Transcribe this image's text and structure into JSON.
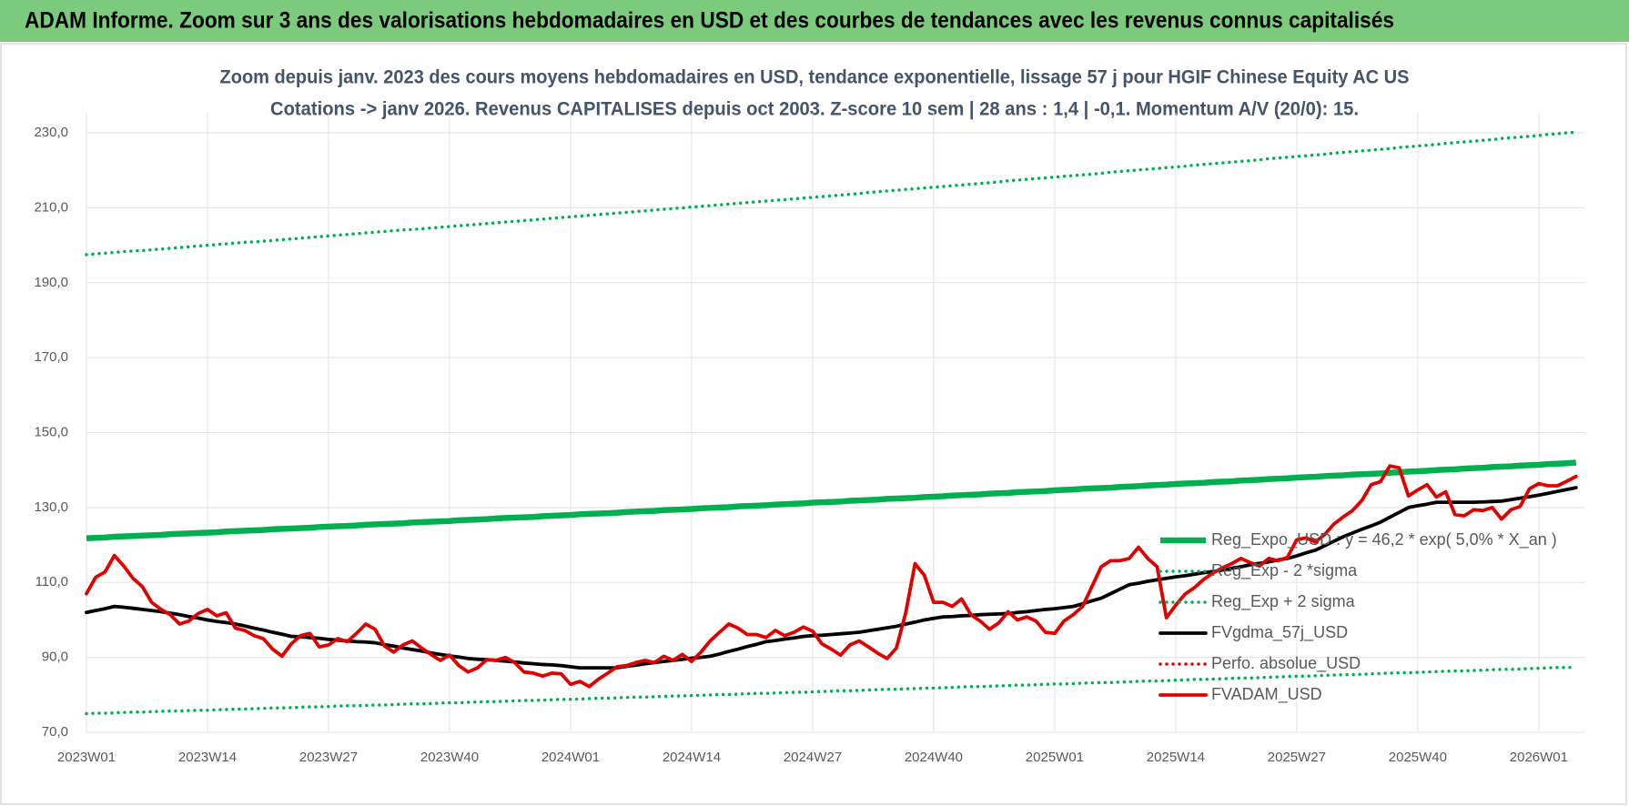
{
  "header": {
    "title": "ADAM Informe. Zoom sur 3 ans des valorisations hebdomadaires en USD et des courbes de tendances avec les revenus connus capitalisés"
  },
  "chart_data": {
    "type": "line",
    "title": "Zoom depuis janv. 2023 des cours moyens hebdomadaires en USD, tendance exponentielle, lissage 57 j pour HGIF Chinese Equity AC US",
    "subtitle": "Cotations -> janv 2026. Revenus CAPITALISES depuis oct 2003. Z-score 10 sem  | 28 ans : 1,4 | -0,1. Momentum A/V (20/0): 15.",
    "categories": [
      "2023W01",
      null,
      null,
      null,
      null,
      null,
      null,
      null,
      null,
      null,
      null,
      null,
      null,
      "2023W14",
      null,
      null,
      null,
      null,
      null,
      null,
      null,
      null,
      null,
      null,
      null,
      null,
      "2023W27",
      null,
      null,
      null,
      null,
      null,
      null,
      null,
      null,
      null,
      null,
      null,
      null,
      "2023W40",
      null,
      null,
      null,
      null,
      null,
      null,
      null,
      null,
      null,
      null,
      null,
      null,
      "2024W01",
      null,
      null,
      null,
      null,
      null,
      null,
      null,
      null,
      null,
      null,
      null,
      null,
      "2024W14",
      null,
      null,
      null,
      null,
      null,
      null,
      null,
      null,
      null,
      null,
      null,
      null,
      "2024W27",
      null,
      null,
      null,
      null,
      null,
      null,
      null,
      null,
      null,
      null,
      null,
      null,
      "2024W40",
      null,
      null,
      null,
      null,
      null,
      null,
      null,
      null,
      null,
      null,
      null,
      null,
      "2025W01",
      null,
      null,
      null,
      null,
      null,
      null,
      null,
      null,
      null,
      null,
      null,
      null,
      "2025W14",
      null,
      null,
      null,
      null,
      null,
      null,
      null,
      null,
      null,
      null,
      null,
      null,
      "2025W27",
      null,
      null,
      null,
      null,
      null,
      null,
      null,
      null,
      null,
      null,
      null,
      null,
      "2025W40",
      null,
      null,
      null,
      null,
      null,
      null,
      null,
      null,
      null,
      null,
      null,
      null,
      "2026W01",
      null,
      null,
      null,
      null
    ],
    "ylim": [
      70,
      239
    ],
    "yticks": [
      {
        "value": 70,
        "label": "70,0"
      },
      {
        "value": 90,
        "label": "90,0"
      },
      {
        "value": 110,
        "label": "110,0"
      },
      {
        "value": 130,
        "label": "130,0"
      },
      {
        "value": 150,
        "label": "150,0"
      },
      {
        "value": 170,
        "label": "170,0"
      },
      {
        "value": 190,
        "label": "190,0"
      },
      {
        "value": 210,
        "label": "210,0"
      },
      {
        "value": 230,
        "label": "230,0"
      }
    ],
    "grid": true,
    "legend": "right",
    "series": [
      {
        "name": "Reg_Expo_USD : y = 46,2 * exp( 5,0% *  X_an )",
        "color": "#00b050",
        "line": "thick",
        "values": [
          121.8,
          121.9,
          122.0,
          122.2,
          122.3,
          122.4,
          122.5,
          122.6,
          122.7,
          122.9,
          123.0,
          123.1,
          123.2,
          123.3,
          123.4,
          123.6,
          123.7,
          123.8,
          123.9,
          124.0,
          124.2,
          124.3,
          124.4,
          124.5,
          124.6,
          124.8,
          124.9,
          125.0,
          125.1,
          125.2,
          125.4,
          125.5,
          125.6,
          125.7,
          125.8,
          126.0,
          126.1,
          126.2,
          126.3,
          126.4,
          126.6,
          126.7,
          126.8,
          126.9,
          127.1,
          127.2,
          127.3,
          127.4,
          127.5,
          127.7,
          127.8,
          127.9,
          128.0,
          128.2,
          128.3,
          128.4,
          128.5,
          128.6,
          128.8,
          128.9,
          129.0,
          129.1,
          129.3,
          129.4,
          129.5,
          129.6,
          129.8,
          129.9,
          130.0,
          130.1,
          130.3,
          130.4,
          130.5,
          130.6,
          130.8,
          130.9,
          131.0,
          131.1,
          131.3,
          131.4,
          131.5,
          131.6,
          131.8,
          131.9,
          132.0,
          132.1,
          132.3,
          132.4,
          132.5,
          132.6,
          132.8,
          132.9,
          133.0,
          133.2,
          133.3,
          133.4,
          133.5,
          133.7,
          133.8,
          133.9,
          134.1,
          134.2,
          134.3,
          134.4,
          134.6,
          134.7,
          134.8,
          135.0,
          135.1,
          135.2,
          135.3,
          135.5,
          135.6,
          135.7,
          135.9,
          136.0,
          136.1,
          136.3,
          136.4,
          136.5,
          136.6,
          136.8,
          136.9,
          137.0,
          137.2,
          137.3,
          137.4,
          137.6,
          137.7,
          137.8,
          138.0,
          138.1,
          138.2,
          138.4,
          138.5,
          138.6,
          138.8,
          138.9,
          139.0,
          139.1,
          139.3,
          139.4,
          139.6,
          139.7,
          139.8,
          140.0,
          140.1,
          140.2,
          140.4,
          140.5,
          140.6,
          140.8,
          140.9,
          141.0,
          141.2,
          141.3,
          141.4,
          141.6,
          141.7,
          141.8,
          142.0
        ]
      },
      {
        "name": "Reg_Exp - 2 *sigma",
        "color": "#00b050",
        "line": "dotted",
        "values": [
          75.0,
          75.1,
          75.1,
          75.2,
          75.3,
          75.4,
          75.4,
          75.5,
          75.6,
          75.7,
          75.7,
          75.8,
          75.9,
          75.9,
          76.0,
          76.1,
          76.2,
          76.2,
          76.3,
          76.4,
          76.5,
          76.5,
          76.6,
          76.7,
          76.8,
          76.8,
          76.9,
          77.0,
          77.1,
          77.1,
          77.2,
          77.3,
          77.3,
          77.4,
          77.5,
          77.6,
          77.6,
          77.7,
          77.8,
          77.9,
          77.9,
          78.0,
          78.1,
          78.2,
          78.2,
          78.3,
          78.4,
          78.5,
          78.5,
          78.6,
          78.7,
          78.8,
          78.8,
          78.9,
          79.0,
          79.1,
          79.1,
          79.2,
          79.3,
          79.4,
          79.4,
          79.5,
          79.6,
          79.7,
          79.7,
          79.8,
          79.9,
          80.0,
          80.1,
          80.1,
          80.2,
          80.3,
          80.4,
          80.4,
          80.5,
          80.6,
          80.7,
          80.7,
          80.8,
          80.9,
          81.0,
          81.1,
          81.1,
          81.2,
          81.3,
          81.4,
          81.5,
          81.5,
          81.6,
          81.7,
          81.8,
          81.8,
          81.9,
          82.0,
          82.1,
          82.2,
          82.2,
          82.3,
          82.4,
          82.5,
          82.6,
          82.6,
          82.7,
          82.8,
          82.9,
          82.9,
          83.0,
          83.1,
          83.2,
          83.3,
          83.3,
          83.4,
          83.5,
          83.6,
          83.7,
          83.7,
          83.8,
          83.9,
          84.0,
          84.1,
          84.1,
          84.2,
          84.3,
          84.4,
          84.5,
          84.5,
          84.6,
          84.7,
          84.8,
          84.9,
          85.0,
          85.0,
          85.1,
          85.2,
          85.3,
          85.4,
          85.4,
          85.5,
          85.6,
          85.7,
          85.8,
          85.9,
          85.9,
          86.0,
          86.1,
          86.2,
          86.3,
          86.4,
          86.4,
          86.5,
          86.6,
          86.7,
          86.8,
          86.8,
          86.9,
          87.0,
          87.1,
          87.2,
          87.3,
          87.3,
          87.4
        ]
      },
      {
        "name": "Reg_Exp + 2 sigma",
        "color": "#00b050",
        "line": "dotted",
        "values": [
          197.5,
          197.7,
          197.9,
          198.1,
          198.3,
          198.5,
          198.6,
          198.8,
          199.0,
          199.2,
          199.4,
          199.6,
          199.8,
          200.0,
          200.2,
          200.4,
          200.6,
          200.8,
          200.9,
          201.1,
          201.3,
          201.5,
          201.7,
          201.9,
          202.1,
          202.3,
          202.5,
          202.7,
          202.9,
          203.1,
          203.3,
          203.5,
          203.7,
          203.9,
          204.1,
          204.2,
          204.4,
          204.6,
          204.8,
          205.0,
          205.2,
          205.4,
          205.6,
          205.8,
          206.0,
          206.2,
          206.4,
          206.6,
          206.8,
          207.0,
          207.2,
          207.4,
          207.6,
          207.8,
          208.0,
          208.2,
          208.4,
          208.6,
          208.8,
          209.0,
          209.2,
          209.4,
          209.6,
          209.8,
          210.0,
          210.2,
          210.4,
          210.6,
          210.8,
          211.0,
          211.2,
          211.4,
          211.6,
          211.8,
          212.0,
          212.2,
          212.4,
          212.6,
          212.8,
          213.0,
          213.2,
          213.4,
          213.6,
          213.8,
          214.1,
          214.3,
          214.5,
          214.7,
          214.9,
          215.1,
          215.3,
          215.5,
          215.7,
          215.9,
          216.1,
          216.3,
          216.5,
          216.7,
          216.9,
          217.2,
          217.4,
          217.6,
          217.8,
          218.0,
          218.2,
          218.4,
          218.6,
          218.8,
          219.0,
          219.2,
          219.5,
          219.7,
          219.9,
          220.1,
          220.3,
          220.5,
          220.7,
          220.9,
          221.1,
          221.4,
          221.6,
          221.8,
          222.0,
          222.2,
          222.4,
          222.6,
          222.8,
          223.1,
          223.3,
          223.5,
          223.7,
          223.9,
          224.1,
          224.3,
          224.6,
          224.8,
          225.0,
          225.2,
          225.4,
          225.6,
          225.8,
          226.1,
          226.3,
          226.5,
          226.7,
          226.9,
          227.2,
          227.4,
          227.6,
          227.8,
          228.0,
          228.2,
          228.5,
          228.7,
          228.9,
          229.1,
          229.3,
          229.6,
          229.8,
          230.0,
          230.2
        ]
      },
      {
        "name": "FVgdma_57j_USD",
        "color": "#000000",
        "line": "solid",
        "values": [
          102.0,
          102.5,
          103.0,
          103.6,
          103.4,
          103.1,
          102.8,
          102.5,
          102.2,
          101.8,
          101.4,
          100.9,
          100.5,
          100.0,
          99.6,
          99.3,
          98.9,
          98.4,
          97.8,
          97.3,
          96.7,
          96.2,
          95.6,
          95.5,
          95.3,
          95.1,
          94.8,
          94.6,
          94.4,
          94.2,
          94.1,
          93.9,
          93.4,
          93.0,
          92.5,
          92.1,
          91.7,
          91.2,
          90.8,
          90.4,
          90.1,
          89.7,
          89.5,
          89.4,
          89.2,
          89.0,
          88.8,
          88.5,
          88.3,
          88.1,
          88.0,
          87.8,
          87.5,
          87.2,
          87.2,
          87.2,
          87.2,
          87.2,
          87.6,
          87.9,
          88.3,
          88.6,
          88.9,
          89.2,
          89.5,
          89.8,
          90.0,
          90.3,
          90.9,
          91.6,
          92.2,
          92.9,
          93.5,
          94.2,
          94.5,
          94.9,
          95.2,
          95.6,
          95.8,
          95.9,
          96.1,
          96.3,
          96.5,
          96.7,
          97.1,
          97.5,
          97.9,
          98.3,
          98.9,
          99.4,
          100.0,
          100.4,
          100.8,
          100.9,
          101.1,
          101.2,
          101.4,
          101.5,
          101.6,
          101.7,
          102.0,
          102.2,
          102.5,
          102.8,
          103.0,
          103.3,
          103.6,
          104.3,
          105.1,
          105.8,
          107.0,
          108.2,
          109.4,
          109.8,
          110.3,
          110.7,
          111.1,
          111.5,
          111.8,
          112.2,
          112.6,
          112.9,
          113.3,
          113.8,
          114.2,
          114.7,
          115.1,
          115.5,
          116.0,
          116.4,
          117.1,
          117.9,
          118.6,
          119.8,
          121.0,
          122.2,
          123.2,
          124.2,
          125.1,
          126.1,
          127.4,
          128.7,
          130.0,
          130.5,
          130.9,
          131.4,
          131.4,
          131.4,
          131.4,
          131.4,
          131.5,
          131.6,
          131.7,
          132.1,
          132.5,
          132.9,
          133.3,
          133.8,
          134.3,
          134.8,
          135.3
        ]
      },
      {
        "name": "Perfo. absolue_USD",
        "color": "#e00000",
        "line": "dotted"
      },
      {
        "name": "FVADAM_USD",
        "color": "#e00000",
        "line": "solid",
        "values": [
          107.0,
          111.4,
          112.8,
          117.2,
          114.4,
          111.1,
          108.9,
          104.7,
          102.8,
          101.4,
          98.9,
          99.7,
          101.7,
          102.8,
          101.1,
          101.9,
          97.8,
          97.2,
          95.8,
          95.0,
          92.2,
          90.3,
          93.6,
          95.8,
          96.4,
          92.8,
          93.3,
          95.0,
          94.2,
          96.4,
          98.9,
          97.5,
          93.1,
          91.4,
          93.3,
          94.4,
          92.5,
          90.8,
          89.2,
          90.6,
          87.8,
          86.1,
          87.2,
          89.4,
          89.2,
          90.0,
          88.6,
          86.1,
          85.8,
          85.0,
          85.8,
          85.6,
          82.8,
          83.6,
          82.2,
          84.2,
          85.8,
          87.5,
          87.8,
          88.6,
          89.2,
          88.6,
          90.3,
          89.2,
          90.8,
          88.9,
          91.4,
          94.4,
          96.7,
          98.9,
          97.8,
          96.1,
          96.1,
          95.3,
          97.2,
          95.8,
          96.7,
          98.1,
          97.0,
          93.6,
          92.2,
          90.6,
          93.3,
          94.4,
          92.8,
          91.1,
          89.7,
          92.5,
          101.9,
          115.0,
          111.9,
          104.7,
          104.7,
          103.6,
          105.6,
          101.4,
          99.7,
          97.5,
          99.2,
          102.2,
          100.0,
          100.8,
          99.7,
          96.7,
          96.4,
          99.7,
          101.4,
          103.6,
          108.9,
          114.2,
          115.8,
          115.8,
          116.4,
          119.4,
          116.4,
          114.2,
          100.6,
          103.9,
          106.9,
          108.6,
          110.8,
          112.5,
          113.9,
          115.0,
          116.4,
          115.3,
          114.4,
          116.4,
          115.8,
          116.7,
          121.4,
          121.9,
          120.8,
          122.8,
          125.6,
          127.5,
          129.2,
          131.9,
          136.1,
          136.9,
          141.1,
          140.6,
          133.1,
          134.7,
          136.1,
          132.8,
          134.2,
          128.1,
          127.8,
          129.4,
          129.2,
          130.0,
          126.9,
          129.4,
          130.3,
          135.0,
          136.4,
          135.8,
          135.8,
          137.0,
          138.3
        ]
      }
    ]
  }
}
